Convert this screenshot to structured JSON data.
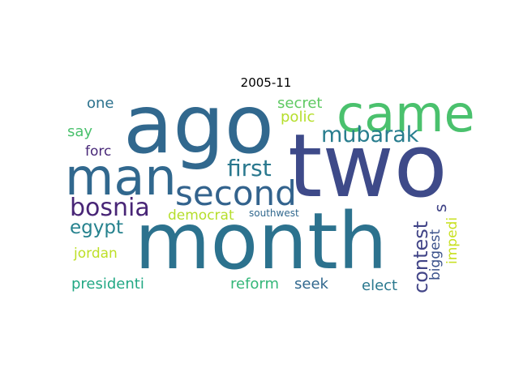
{
  "title": "2005-11",
  "words": {
    "ago": "ago",
    "two": "two",
    "month": "month",
    "came": "came",
    "man": "man",
    "second": "second",
    "first": "first",
    "mubarak": "mubarak",
    "bosnia": "bosnia",
    "egypt": "egypt",
    "contest": "contest",
    "s": "s",
    "biggest": "biggest",
    "impedi": "impedi",
    "one": "one",
    "secret": "secret",
    "polic": "polic",
    "say": "say",
    "forc": "forc",
    "democrat": "democrat",
    "southwest": "southwest",
    "jordan": "jordan",
    "presidenti": "presidenti",
    "reform": "reform",
    "seek": "seek",
    "elect": "elect"
  },
  "colors": {
    "ago": "#31688e",
    "two": "#3e4a89",
    "month": "#2c728e",
    "came": "#4ac16d",
    "man": "#31688e",
    "second": "#33638d",
    "first": "#2a788e",
    "mubarak": "#287d8e",
    "bosnia": "#482576",
    "egypt": "#26828e",
    "contest": "#414487",
    "s": "#414487",
    "biggest": "#3b528b",
    "impedi": "#c8e020",
    "one": "#2c728e",
    "secret": "#5ec962",
    "polic": "#b5de2b",
    "say": "#4ac16d",
    "forc": "#482878",
    "democrat": "#b5de2b",
    "southwest": "#31688e",
    "jordan": "#bddf26",
    "presidenti": "#22a884",
    "reform": "#35b779",
    "seek": "#31688e",
    "elect": "#2a788e"
  }
}
